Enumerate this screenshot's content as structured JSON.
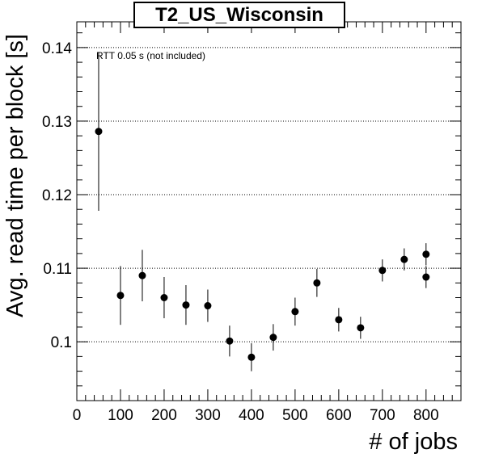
{
  "chart_data": {
    "type": "scatter",
    "title": "T2_US_Wisconsin",
    "xlabel": "# of jobs",
    "ylabel": "Avg. read time per block [s]",
    "annotation": "RTT 0.05 s (not included)",
    "xlim": [
      0,
      880
    ],
    "ylim": [
      0.092,
      0.1435
    ],
    "x_ticks": [
      0,
      100,
      200,
      300,
      400,
      500,
      600,
      700,
      800
    ],
    "y_ticks": [
      0.1,
      0.11,
      0.12,
      0.13,
      0.14
    ],
    "y_tick_labels": [
      "0.1",
      "0.11",
      "0.12",
      "0.13",
      "0.14"
    ],
    "grid": "horizontal-dotted",
    "points": [
      {
        "x": 50,
        "y": 0.1286,
        "err": 0.0108
      },
      {
        "x": 100,
        "y": 0.1063,
        "err": 0.004
      },
      {
        "x": 150,
        "y": 0.109,
        "err": 0.0035
      },
      {
        "x": 200,
        "y": 0.106,
        "err": 0.0028
      },
      {
        "x": 250,
        "y": 0.105,
        "err": 0.0027
      },
      {
        "x": 300,
        "y": 0.1049,
        "err": 0.0022
      },
      {
        "x": 350,
        "y": 0.1001,
        "err": 0.0021
      },
      {
        "x": 400,
        "y": 0.0979,
        "err": 0.0019
      },
      {
        "x": 450,
        "y": 0.1006,
        "err": 0.0018
      },
      {
        "x": 500,
        "y": 0.1041,
        "err": 0.0019
      },
      {
        "x": 550,
        "y": 0.108,
        "err": 0.0019
      },
      {
        "x": 600,
        "y": 0.103,
        "err": 0.0016
      },
      {
        "x": 650,
        "y": 0.1019,
        "err": 0.0015
      },
      {
        "x": 700,
        "y": 0.1097,
        "err": 0.0015
      },
      {
        "x": 750,
        "y": 0.1112,
        "err": 0.0015
      },
      {
        "x": 800,
        "y": 0.1119,
        "err": 0.0015
      },
      {
        "x": 800,
        "y": 0.1088,
        "err": 0.0015
      }
    ]
  }
}
